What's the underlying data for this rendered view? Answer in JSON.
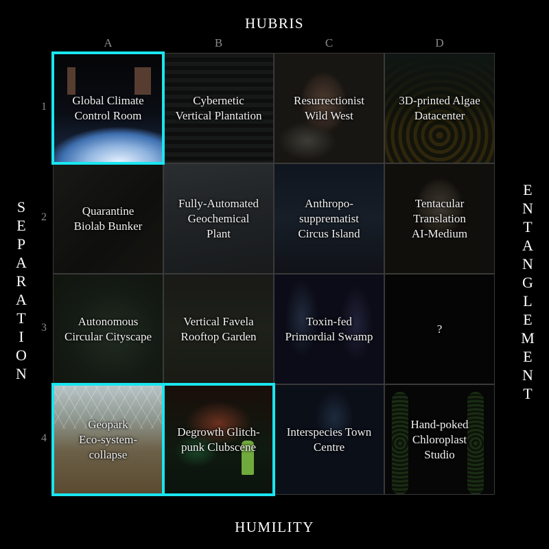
{
  "axes": {
    "top": "HUBRIS",
    "bottom": "HUMILITY",
    "left": [
      "S",
      "E",
      "P",
      "A",
      "R",
      "A",
      "T",
      "I",
      "O",
      "N"
    ],
    "right": [
      "E",
      "N",
      "T",
      "A",
      "N",
      "G",
      "L",
      "E",
      "M",
      "E",
      "N",
      "T"
    ]
  },
  "columns": [
    "A",
    "B",
    "C",
    "D"
  ],
  "rows": [
    "1",
    "2",
    "3",
    "4"
  ],
  "cells": [
    {
      "id": "A1",
      "lines": [
        "Global Climate",
        "Control Room"
      ],
      "highlighted": true
    },
    {
      "id": "B1",
      "lines": [
        "Cybernetic",
        "Vertical Plantation"
      ],
      "highlighted": false
    },
    {
      "id": "C1",
      "lines": [
        "Resurrectionist",
        "Wild West"
      ],
      "highlighted": false
    },
    {
      "id": "D1",
      "lines": [
        "3D-printed Algae",
        "Datacenter"
      ],
      "highlighted": false
    },
    {
      "id": "A2",
      "lines": [
        "Quarantine",
        "Biolab Bunker"
      ],
      "highlighted": false
    },
    {
      "id": "B2",
      "lines": [
        "Fully-Automated",
        "Geochemical",
        "Plant"
      ],
      "highlighted": false
    },
    {
      "id": "C2",
      "lines": [
        "Anthropo-",
        "supprematist",
        "Circus Island"
      ],
      "highlighted": false
    },
    {
      "id": "D2",
      "lines": [
        "Tentacular",
        "Translation",
        "AI-Medium"
      ],
      "highlighted": false
    },
    {
      "id": "A3",
      "lines": [
        "Autonomous",
        "Circular Cityscape"
      ],
      "highlighted": false
    },
    {
      "id": "B3",
      "lines": [
        "Vertical Favela",
        "Rooftop Garden"
      ],
      "highlighted": false
    },
    {
      "id": "C3",
      "lines": [
        "Toxin-fed",
        "Primordial Swamp"
      ],
      "highlighted": false
    },
    {
      "id": "D3",
      "lines": [
        "?"
      ],
      "highlighted": false
    },
    {
      "id": "A4",
      "lines": [
        "Geopark",
        "Eco-system-",
        "collapse"
      ],
      "highlighted": true
    },
    {
      "id": "B4",
      "lines": [
        "Degrowth Glitch-",
        "punk Clubscene"
      ],
      "highlighted": true
    },
    {
      "id": "C4",
      "lines": [
        "Interspecies Town",
        "Centre"
      ],
      "highlighted": false
    },
    {
      "id": "D4",
      "lines": [
        "Hand-poked",
        "Chloroplast",
        "Studio"
      ],
      "highlighted": false
    }
  ],
  "colors": {
    "highlight": "#19e6f0",
    "axis_label": "#8a8a8a",
    "background": "#000000"
  }
}
